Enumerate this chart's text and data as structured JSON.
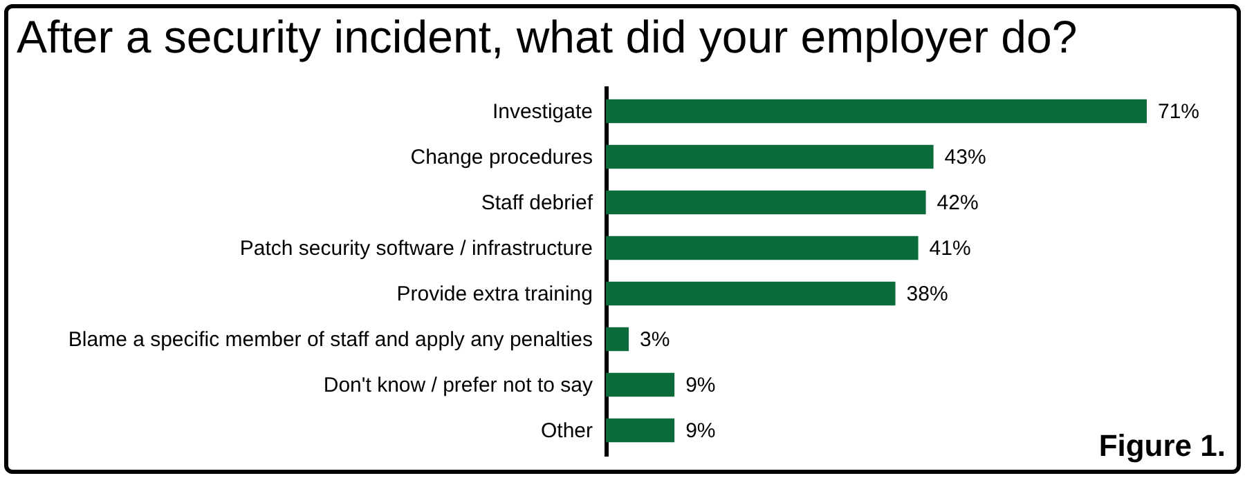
{
  "chart_data": {
    "type": "bar",
    "orientation": "horizontal",
    "title": "After a security incident, what did your employer do?",
    "categories": [
      "Investigate",
      "Change procedures",
      "Staff debrief",
      "Patch security software / infrastructure",
      "Provide extra training",
      "Blame a specific member of staff and apply any penalties",
      "Don't know / prefer not to say",
      "Other"
    ],
    "values": [
      71,
      43,
      42,
      41,
      38,
      3,
      9,
      9
    ],
    "value_labels": [
      "71%",
      "43%",
      "42%",
      "41%",
      "38%",
      "3%",
      "9%",
      "9%"
    ],
    "color": "#0b6b3a",
    "annotations": [
      "Figure 1."
    ]
  }
}
